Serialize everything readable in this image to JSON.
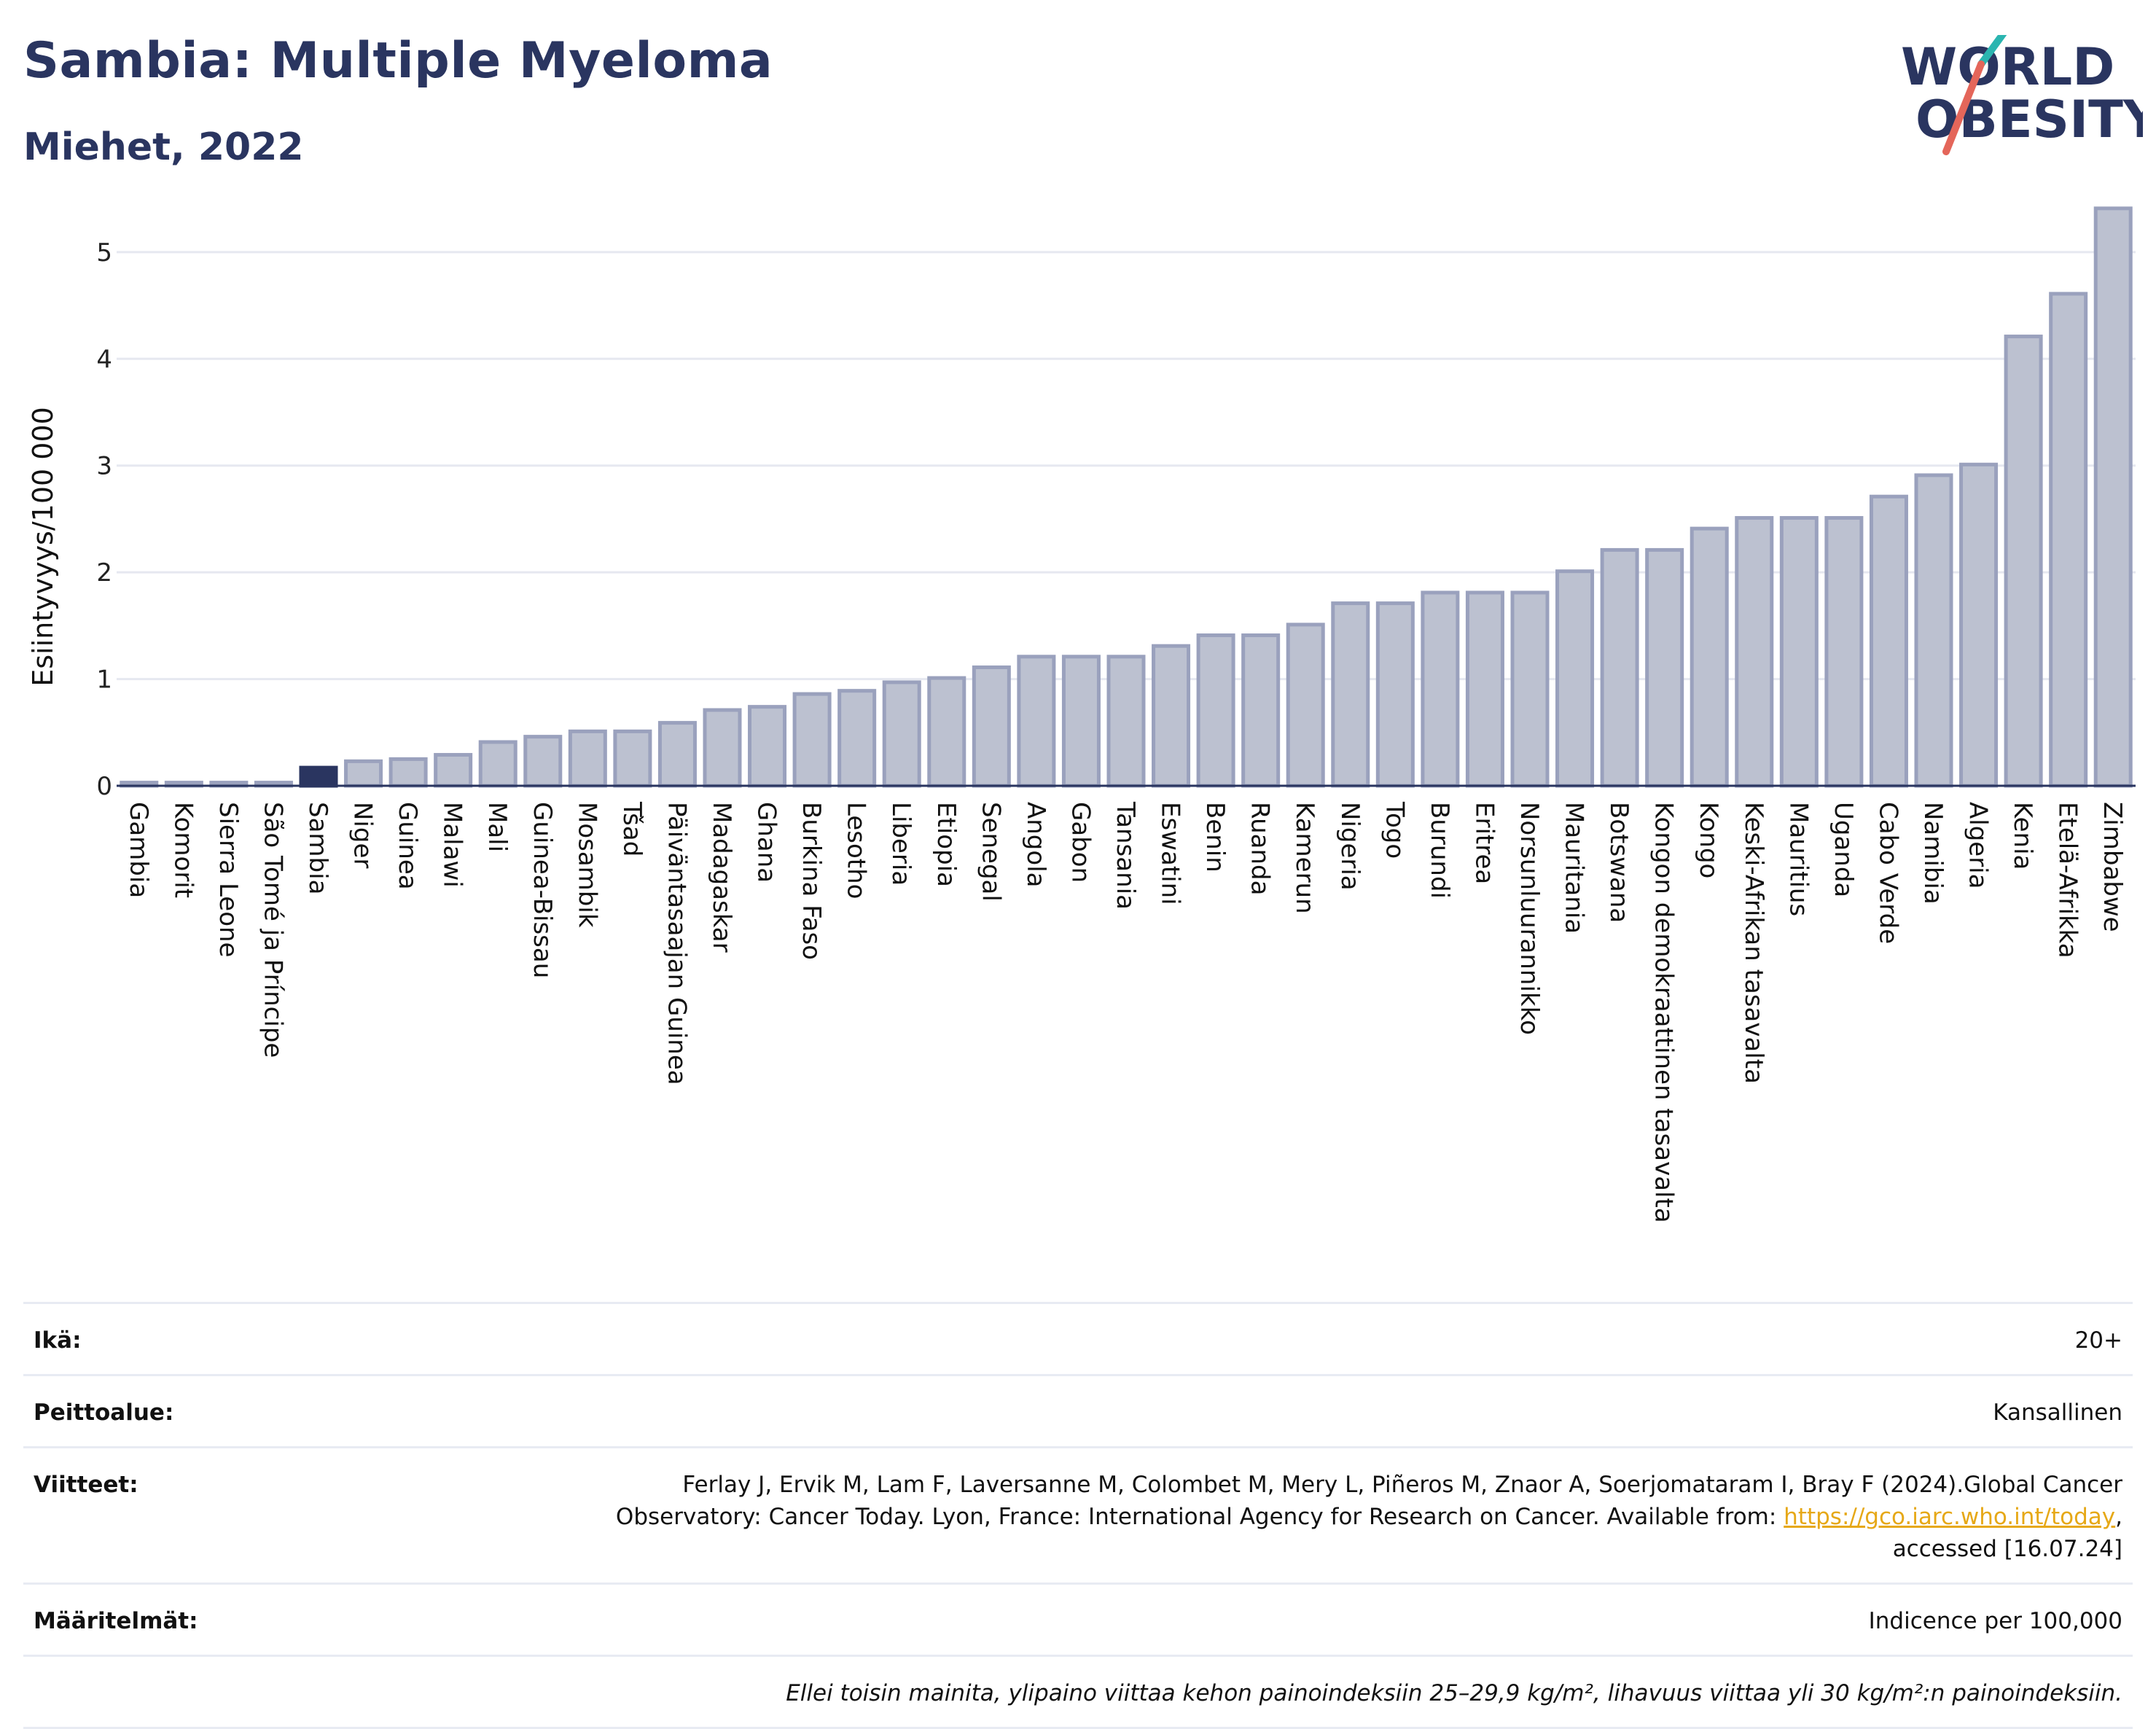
{
  "header": {
    "title": "Sambia: Multiple Myeloma",
    "subtitle": "Miehet, 2022",
    "logo_line1": "WORLD",
    "logo_line2": "OBESITY"
  },
  "colors": {
    "bar": "#bcc1d0",
    "bar_edge": "#9aa1bd",
    "highlight": "#2a3560",
    "grid": "#e6e8f0",
    "logo_slash_teal": "#2bb5b0",
    "logo_slash_red": "#e4665a"
  },
  "chart_data": {
    "type": "bar",
    "title": "Sambia: Multiple Myeloma",
    "subtitle": "Miehet, 2022",
    "ylabel": "Esiintyvyys/100 000",
    "xlabel": "",
    "ylim": [
      0,
      5.45
    ],
    "yticks": [
      0,
      1,
      2,
      3,
      4,
      5
    ],
    "grid": true,
    "highlight": "Sambia",
    "categories": [
      "Gambia",
      "Komorit",
      "Sierra Leone",
      "São Tomé ja Príncipe",
      "Sambia",
      "Niger",
      "Guinea",
      "Malawi",
      "Mali",
      "Guinea-Bissau",
      "Mosambik",
      "Tšad",
      "Päiväntasaajan Guinea",
      "Madagaskar",
      "Ghana",
      "Burkina Faso",
      "Lesotho",
      "Liberia",
      "Etiopia",
      "Senegal",
      "Angola",
      "Gabon",
      "Tansania",
      "Eswatini",
      "Benin",
      "Ruanda",
      "Kamerun",
      "Nigeria",
      "Togo",
      "Burundi",
      "Eritrea",
      "Norsunluurannikko",
      "Mauritania",
      "Botswana",
      "Kongon demokraattinen tasavalta",
      "Kongo",
      "Keski-Afrikan tasavalta",
      "Mauritius",
      "Uganda",
      "Cabo Verde",
      "Namibia",
      "Algeria",
      "Kenia",
      "Etelä-Afrikka",
      "Zimbabwe"
    ],
    "values": [
      0.03,
      0.03,
      0.03,
      0.03,
      0.17,
      0.23,
      0.25,
      0.29,
      0.41,
      0.46,
      0.51,
      0.51,
      0.59,
      0.71,
      0.74,
      0.86,
      0.89,
      0.97,
      1.01,
      1.11,
      1.21,
      1.21,
      1.21,
      1.31,
      1.41,
      1.41,
      1.51,
      1.71,
      1.71,
      1.81,
      1.81,
      1.81,
      2.01,
      2.21,
      2.21,
      2.41,
      2.51,
      2.51,
      2.51,
      2.71,
      2.91,
      3.01,
      4.21,
      4.61,
      5.41
    ]
  },
  "info": {
    "age_label": "Ikä:",
    "age_value": "20+",
    "coverage_label": "Peittoalue:",
    "coverage_value": "Kansallinen",
    "refs_label": "Viitteet:",
    "refs_line1": "Ferlay J, Ervik M, Lam F, Laversanne M, Colombet M, Mery L, Piñeros M, Znaor A, Soerjomataram I, Bray F (2024).Global Cancer",
    "refs_line2_prefix": "Observatory: Cancer Today. Lyon, France: International Agency for Research on Cancer. Available from: ",
    "refs_link": "https://gco.iarc.who.int/today",
    "refs_line2_suffix": ",",
    "refs_line3": "accessed [16.07.24]",
    "defs_label": "Määritelmät:",
    "defs_value": "Indicence per 100,000",
    "note": "Ellei toisin mainita, ylipaino viittaa kehon painoindeksiin 25–29,9 kg/m², lihavuus viittaa yli 30 kg/m²:n painoindeksiin."
  }
}
